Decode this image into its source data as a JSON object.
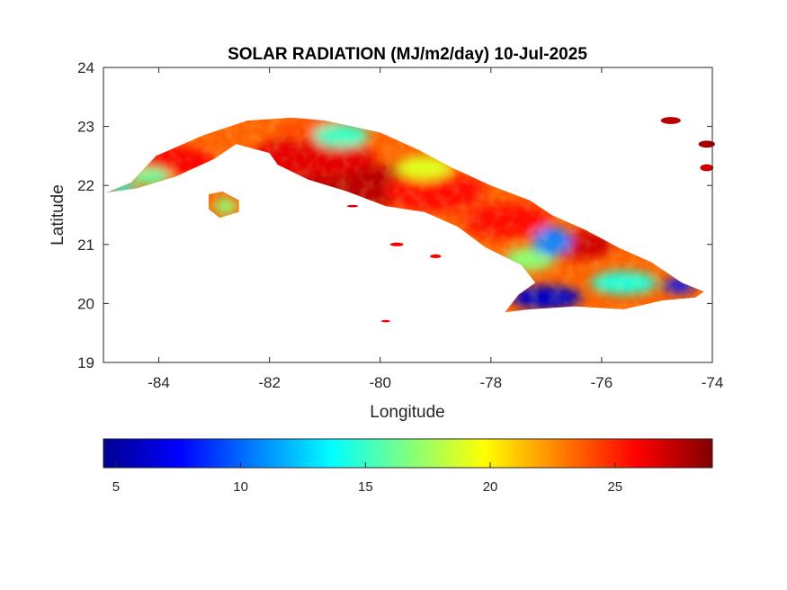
{
  "title": "SOLAR RADIATION (MJ/m2/day) 10-Jul-2025",
  "colors": {
    "background": "#ffffff",
    "axis": "#262626",
    "colormap": [
      "#00008f",
      "#0000ff",
      "#00ffff",
      "#ffff00",
      "#ff0000",
      "#800000"
    ]
  },
  "chart_data": {
    "type": "heatmap",
    "title": "SOLAR RADIATION (MJ/m2/day) 10-Jul-2025",
    "xlabel": "Longitude",
    "ylabel": "Latitude",
    "xlim": [
      -85,
      -74
    ],
    "ylim": [
      19,
      24
    ],
    "xticks": [
      -84,
      -82,
      -80,
      -78,
      -76,
      -74
    ],
    "yticks": [
      19,
      20,
      21,
      22,
      23,
      24
    ],
    "xtick_labels": [
      "-84",
      "-82",
      "-80",
      "-78",
      "-76",
      "-74"
    ],
    "ytick_labels": [
      "19",
      "20",
      "21",
      "22",
      "23",
      "24"
    ],
    "grid": false,
    "colorbar": {
      "orientation": "horizontal",
      "placement": "bottom",
      "range": [
        4.5,
        28.9
      ],
      "ticks": [
        5,
        10,
        15,
        20,
        25
      ],
      "tick_labels": [
        "5",
        "10",
        "15",
        "20",
        "25"
      ]
    },
    "land_outline": [
      [
        -84.95,
        21.88
      ],
      [
        -84.5,
        22.05
      ],
      [
        -84.05,
        22.5
      ],
      [
        -83.2,
        22.85
      ],
      [
        -82.4,
        23.1
      ],
      [
        -81.6,
        23.15
      ],
      [
        -81.0,
        23.1
      ],
      [
        -80.5,
        23.0
      ],
      [
        -80.0,
        22.9
      ],
      [
        -79.3,
        22.6
      ],
      [
        -78.7,
        22.3
      ],
      [
        -78.0,
        22.0
      ],
      [
        -77.3,
        21.75
      ],
      [
        -76.9,
        21.5
      ],
      [
        -76.3,
        21.25
      ],
      [
        -75.7,
        20.95
      ],
      [
        -75.1,
        20.7
      ],
      [
        -74.55,
        20.35
      ],
      [
        -74.15,
        20.2
      ],
      [
        -74.3,
        20.1
      ],
      [
        -74.9,
        20.05
      ],
      [
        -75.6,
        19.9
      ],
      [
        -76.5,
        19.95
      ],
      [
        -77.3,
        19.9
      ],
      [
        -77.75,
        19.85
      ],
      [
        -77.5,
        20.15
      ],
      [
        -77.2,
        20.35
      ],
      [
        -77.45,
        20.65
      ],
      [
        -78.1,
        20.95
      ],
      [
        -78.6,
        21.3
      ],
      [
        -79.2,
        21.55
      ],
      [
        -79.9,
        21.65
      ],
      [
        -80.6,
        21.9
      ],
      [
        -81.3,
        22.1
      ],
      [
        -81.85,
        22.35
      ],
      [
        -82.0,
        22.55
      ],
      [
        -82.6,
        22.7
      ],
      [
        -83.0,
        22.45
      ],
      [
        -83.7,
        22.15
      ],
      [
        -84.4,
        21.95
      ],
      [
        -84.95,
        21.88
      ]
    ],
    "isla_outline": [
      [
        -83.1,
        21.85
      ],
      [
        -82.85,
        21.9
      ],
      [
        -82.55,
        21.75
      ],
      [
        -82.55,
        21.55
      ],
      [
        -82.9,
        21.45
      ],
      [
        -83.1,
        21.6
      ],
      [
        -83.1,
        21.85
      ]
    ],
    "regions": [
      {
        "lon": -80.25,
        "lat": 22.0,
        "rx": 1.6,
        "ry": 0.35,
        "value": 27.5
      },
      {
        "lon": -81.2,
        "lat": 22.5,
        "rx": 1.1,
        "ry": 0.35,
        "value": 26.5
      },
      {
        "lon": -79.0,
        "lat": 21.9,
        "rx": 0.9,
        "ry": 0.35,
        "value": 25.5
      },
      {
        "lon": -77.7,
        "lat": 21.4,
        "rx": 0.8,
        "ry": 0.3,
        "value": 25.5
      },
      {
        "lon": -76.4,
        "lat": 21.0,
        "rx": 0.6,
        "ry": 0.25,
        "value": 27.0
      },
      {
        "lon": -83.8,
        "lat": 22.4,
        "rx": 0.8,
        "ry": 0.25,
        "value": 26.0
      },
      {
        "lon": -81.2,
        "lat": 22.95,
        "rx": 0.7,
        "ry": 0.18,
        "value": 24.0
      },
      {
        "lon": -80.7,
        "lat": 22.85,
        "rx": 0.5,
        "ry": 0.2,
        "value": 15.0
      },
      {
        "lon": -84.15,
        "lat": 22.15,
        "rx": 0.35,
        "ry": 0.15,
        "value": 16.0
      },
      {
        "lon": -84.65,
        "lat": 21.95,
        "rx": 0.25,
        "ry": 0.1,
        "value": 14.0
      },
      {
        "lon": -79.2,
        "lat": 22.3,
        "rx": 0.5,
        "ry": 0.2,
        "value": 19.0
      },
      {
        "lon": -77.3,
        "lat": 20.75,
        "rx": 0.45,
        "ry": 0.2,
        "value": 17.0
      },
      {
        "lon": -76.9,
        "lat": 21.05,
        "rx": 0.35,
        "ry": 0.25,
        "value": 10.5
      },
      {
        "lon": -77.0,
        "lat": 20.1,
        "rx": 0.65,
        "ry": 0.2,
        "value": 6.0
      },
      {
        "lon": -75.6,
        "lat": 20.35,
        "rx": 0.6,
        "ry": 0.2,
        "value": 14.5
      },
      {
        "lon": -74.6,
        "lat": 20.3,
        "rx": 0.3,
        "ry": 0.12,
        "value": 8.0
      },
      {
        "lon": -82.8,
        "lat": 21.65,
        "rx": 0.2,
        "ry": 0.15,
        "value": 17.0
      }
    ],
    "islets": [
      {
        "lon": -74.75,
        "lat": 23.1,
        "rx": 0.18,
        "ry": 0.06,
        "value": 27.5
      },
      {
        "lon": -74.1,
        "lat": 22.7,
        "rx": 0.15,
        "ry": 0.06,
        "value": 28.0
      },
      {
        "lon": -74.1,
        "lat": 22.3,
        "rx": 0.12,
        "ry": 0.06,
        "value": 27.0
      },
      {
        "lon": -79.7,
        "lat": 21.0,
        "rx": 0.12,
        "ry": 0.03,
        "value": 26.0
      },
      {
        "lon": -79.0,
        "lat": 20.8,
        "rx": 0.1,
        "ry": 0.03,
        "value": 26.0
      },
      {
        "lon": -79.9,
        "lat": 19.7,
        "rx": 0.08,
        "ry": 0.02,
        "value": 26.0
      },
      {
        "lon": -80.5,
        "lat": 21.65,
        "rx": 0.1,
        "ry": 0.02,
        "value": 27.0
      }
    ]
  }
}
